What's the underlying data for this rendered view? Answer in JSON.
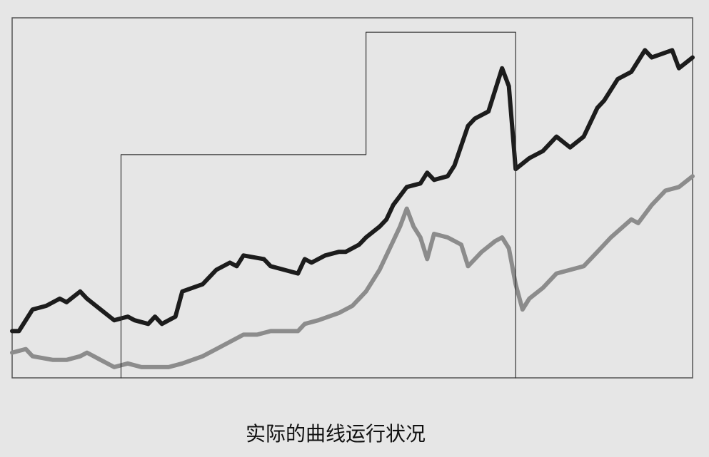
{
  "chart_data": {
    "type": "line",
    "caption": "实际的曲线运行状况",
    "xlim": [
      0,
      100
    ],
    "ylim": [
      0,
      100
    ],
    "series": [
      {
        "color": "#1c1c1c",
        "line_width": 6,
        "x": [
          0,
          1,
          3,
          5,
          7,
          8,
          10,
          11,
          13,
          15,
          17,
          18,
          20,
          21,
          22,
          24,
          25,
          28,
          30,
          32,
          33,
          34,
          37,
          38,
          40,
          42,
          43,
          44,
          46,
          48,
          49,
          51,
          52,
          54,
          55,
          56,
          58,
          60,
          61,
          62,
          64,
          65,
          67,
          68,
          70,
          72,
          73,
          74,
          76,
          78,
          80,
          82,
          84,
          86,
          87,
          89,
          91,
          93,
          94,
          97,
          98,
          100
        ],
        "values": [
          13,
          13,
          19,
          20,
          22,
          21,
          24,
          22,
          19,
          16,
          17,
          16,
          15,
          17,
          15,
          17,
          24,
          26,
          30,
          32,
          31,
          34,
          33,
          31,
          30,
          29,
          33,
          32,
          34,
          35,
          35,
          37,
          39,
          42,
          44,
          48,
          53,
          54,
          57,
          55,
          56,
          59,
          70,
          72,
          74,
          86,
          81,
          58,
          61,
          63,
          67,
          64,
          67,
          75,
          77,
          83,
          85,
          91,
          89,
          91,
          86,
          89
        ]
      },
      {
        "color": "#8c8c8c",
        "line_width": 6,
        "x": [
          0,
          2,
          3,
          6,
          8,
          10,
          11,
          13,
          15,
          17,
          19,
          21,
          23,
          25,
          28,
          30,
          32,
          34,
          36,
          38,
          40,
          42,
          43,
          45,
          48,
          50,
          52,
          54,
          56,
          57,
          58,
          59,
          60,
          61,
          62,
          64,
          66,
          67,
          69,
          71,
          72,
          73,
          74,
          75,
          76,
          78,
          80,
          82,
          84,
          86,
          88,
          91,
          92,
          94,
          96,
          98,
          100
        ],
        "values": [
          7,
          8,
          6,
          5,
          5,
          6,
          7,
          5,
          3,
          4,
          3,
          3,
          3,
          4,
          6,
          8,
          10,
          12,
          12,
          13,
          13,
          13,
          15,
          16,
          18,
          20,
          24,
          30,
          38,
          42,
          47,
          42,
          39,
          33,
          40,
          39,
          37,
          31,
          35,
          38,
          39,
          36,
          26,
          19,
          22,
          25,
          29,
          30,
          31,
          35,
          39,
          44,
          43,
          48,
          52,
          53,
          56
        ]
      },
      {
        "color": "#333333",
        "line_width": 1.2,
        "x": [
          16,
          16,
          52,
          52,
          74,
          74
        ],
        "values": [
          0,
          62,
          62,
          96,
          96,
          0
        ]
      }
    ]
  }
}
